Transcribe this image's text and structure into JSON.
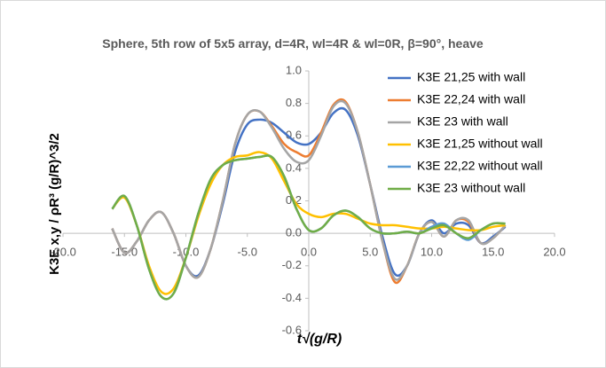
{
  "chart_data": {
    "type": "line",
    "title": "Sphere, 5th row of 5x5 array, d=4R, wl=4R & wl=0R, β=90°, heave",
    "x_label": "t√(g/R)",
    "y_label": "K3E x,y / ρR³ (g/R)^3/2",
    "x": [
      -16,
      -15,
      -14,
      -13,
      -12,
      -11,
      -10,
      -9,
      -8,
      -7,
      -6,
      -5,
      -4,
      -3,
      -2,
      -1,
      0,
      1,
      2,
      3,
      4,
      5,
      6,
      7,
      8,
      9,
      10,
      11,
      12,
      13,
      14,
      15,
      16
    ],
    "series": [
      {
        "name": "K3E 21,25 with wall",
        "color": "#4472c4",
        "values": [
          0.03,
          -0.12,
          -0.05,
          0.08,
          0.13,
          0.0,
          -0.2,
          -0.26,
          -0.1,
          0.18,
          0.5,
          0.67,
          0.7,
          0.68,
          0.62,
          0.56,
          0.55,
          0.62,
          0.74,
          0.76,
          0.6,
          0.3,
          -0.02,
          -0.25,
          -0.2,
          0.0,
          0.08,
          0.0,
          0.06,
          0.05,
          -0.06,
          -0.02,
          0.04
        ]
      },
      {
        "name": "K3E 22,24 with wall",
        "color": "#ed7d31",
        "values": [
          0.03,
          -0.12,
          -0.05,
          0.08,
          0.13,
          0.0,
          -0.2,
          -0.27,
          -0.1,
          0.2,
          0.55,
          0.73,
          0.75,
          0.66,
          0.55,
          0.5,
          0.48,
          0.62,
          0.79,
          0.81,
          0.62,
          0.3,
          -0.05,
          -0.3,
          -0.2,
          0.0,
          0.07,
          -0.02,
          0.08,
          0.07,
          -0.06,
          -0.03,
          0.05
        ]
      },
      {
        "name": "K3E 23 with wall",
        "color": "#a5a5a5",
        "values": [
          0.03,
          -0.12,
          -0.05,
          0.08,
          0.13,
          0.0,
          -0.2,
          -0.27,
          -0.1,
          0.2,
          0.55,
          0.73,
          0.75,
          0.65,
          0.52,
          0.44,
          0.45,
          0.6,
          0.78,
          0.8,
          0.62,
          0.3,
          -0.05,
          -0.28,
          -0.2,
          0.0,
          0.07,
          -0.02,
          0.08,
          0.08,
          -0.06,
          -0.03,
          0.05
        ]
      },
      {
        "name": "K3E 21,25 without wall",
        "color": "#ffc000",
        "values": [
          0.15,
          0.22,
          0.05,
          -0.2,
          -0.36,
          -0.34,
          -0.15,
          0.1,
          0.3,
          0.42,
          0.47,
          0.48,
          0.5,
          0.46,
          0.32,
          0.18,
          0.12,
          0.1,
          0.12,
          0.12,
          0.09,
          0.06,
          0.05,
          0.05,
          0.04,
          0.03,
          0.03,
          0.04,
          0.03,
          0.02,
          0.02,
          0.04,
          0.05
        ]
      },
      {
        "name": "K3E 22,22 without wall",
        "color": "#5b9bd5",
        "values": [
          0.15,
          0.23,
          0.05,
          -0.22,
          -0.39,
          -0.37,
          -0.15,
          0.12,
          0.33,
          0.42,
          0.45,
          0.46,
          0.47,
          0.47,
          0.35,
          0.15,
          0.02,
          0.03,
          0.11,
          0.14,
          0.1,
          0.03,
          0.0,
          0.0,
          0.01,
          0.0,
          0.04,
          0.06,
          0.0,
          -0.04,
          0.02,
          0.06,
          0.06
        ]
      },
      {
        "name": "K3E 23 without wall",
        "color": "#70ad47",
        "values": [
          0.15,
          0.23,
          0.05,
          -0.22,
          -0.39,
          -0.37,
          -0.15,
          0.12,
          0.33,
          0.42,
          0.45,
          0.46,
          0.47,
          0.47,
          0.35,
          0.15,
          0.02,
          0.03,
          0.11,
          0.14,
          0.1,
          0.03,
          0.0,
          0.0,
          0.01,
          0.0,
          0.03,
          0.05,
          0.0,
          -0.03,
          0.02,
          0.06,
          0.06
        ]
      }
    ],
    "xlim": [
      -20,
      20
    ],
    "xticks": [
      {
        "value": -20,
        "label": "-20.0"
      },
      {
        "value": -15,
        "label": "-15.0"
      },
      {
        "value": -10,
        "label": "-10.0"
      },
      {
        "value": -5,
        "label": "-5.0"
      },
      {
        "value": 0,
        "label": "0.0"
      },
      {
        "value": 5,
        "label": "5.0"
      },
      {
        "value": 10,
        "label": "10.0"
      },
      {
        "value": 15,
        "label": "15.0"
      },
      {
        "value": 20,
        "label": "20.0"
      }
    ],
    "ylim": [
      -0.6,
      1.0
    ],
    "yticks": [
      {
        "value": -0.6,
        "label": "-0.6"
      },
      {
        "value": -0.4,
        "label": "-0.4"
      },
      {
        "value": -0.2,
        "label": "-0.2"
      },
      {
        "value": 0,
        "label": "0.0"
      },
      {
        "value": 0.2,
        "label": "0.2"
      },
      {
        "value": 0.4,
        "label": "0.4"
      },
      {
        "value": 0.6,
        "label": "0.6"
      },
      {
        "value": 0.8,
        "label": "0.8"
      },
      {
        "value": 1.0,
        "label": "1.0"
      }
    ],
    "grid": false
  }
}
